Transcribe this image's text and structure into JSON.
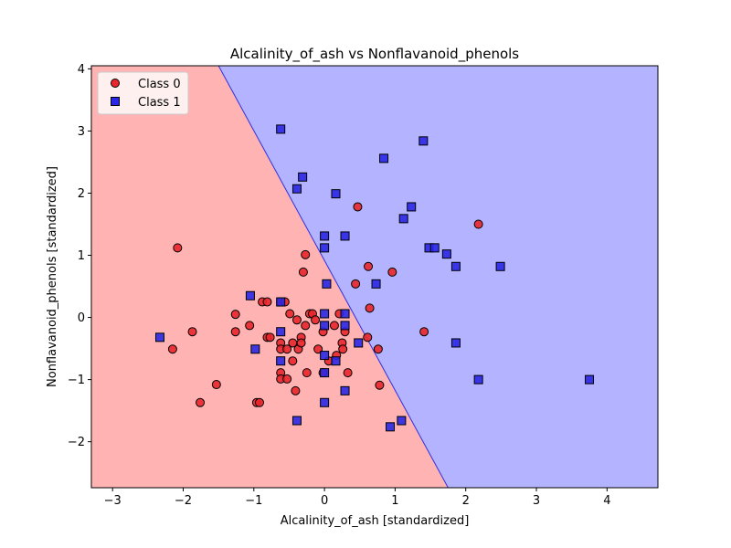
{
  "chart_data": {
    "type": "scatter",
    "title": "Alcalinity_of_ash vs Nonflavanoid_phenols",
    "xlabel": "Alcalinity_of_ash [standardized]",
    "ylabel": "Nonflavanoid_phenols [standardized]",
    "xlim": [
      -3.3,
      4.72
    ],
    "ylim": [
      -2.74,
      4.05
    ],
    "xticks": [
      -3,
      -2,
      -1,
      0,
      1,
      2,
      3,
      4
    ],
    "yticks": [
      -2,
      -1,
      0,
      1,
      2,
      3,
      4
    ],
    "xtick_labels": [
      "−3",
      "−2",
      "−1",
      "0",
      "1",
      "2",
      "3",
      "4"
    ],
    "ytick_labels": [
      "−2",
      "−1",
      "0",
      "1",
      "2",
      "3",
      "4"
    ],
    "grid": false,
    "legend": {
      "placement": "top-left"
    },
    "decision_boundary": {
      "points": [
        [
          -1.5,
          4.05
        ],
        [
          1.75,
          -2.74
        ]
      ],
      "region_colors": {
        "Class 0": "#ffb3b3",
        "Class 1": "#b3b3ff"
      }
    },
    "series": [
      {
        "name": "Class 0",
        "marker": "circle",
        "color": "#e8262b",
        "points": [
          [
            -2.08,
            1.12
          ],
          [
            -2.15,
            -0.51
          ],
          [
            -1.87,
            -0.23
          ],
          [
            -1.76,
            -1.37
          ],
          [
            -1.53,
            -1.08
          ],
          [
            -1.26,
            0.05
          ],
          [
            -1.26,
            -0.23
          ],
          [
            -1.06,
            -0.13
          ],
          [
            -0.96,
            -1.37
          ],
          [
            -0.92,
            -1.37
          ],
          [
            -0.88,
            0.25
          ],
          [
            -0.81,
            0.25
          ],
          [
            -0.81,
            -0.32
          ],
          [
            -0.77,
            -0.32
          ],
          [
            -0.62,
            0.25
          ],
          [
            -0.56,
            0.25
          ],
          [
            -0.62,
            -0.41
          ],
          [
            -0.62,
            -0.51
          ],
          [
            -0.62,
            -0.89
          ],
          [
            -0.62,
            -0.99
          ],
          [
            -0.53,
            -0.51
          ],
          [
            -0.53,
            -0.99
          ],
          [
            -0.49,
            0.06
          ],
          [
            -0.45,
            -0.41
          ],
          [
            -0.45,
            -0.7
          ],
          [
            -0.41,
            -1.18
          ],
          [
            -0.39,
            -0.04
          ],
          [
            -0.37,
            -0.51
          ],
          [
            -0.33,
            -0.32
          ],
          [
            -0.33,
            -0.41
          ],
          [
            -0.3,
            0.73
          ],
          [
            -0.27,
            1.01
          ],
          [
            -0.27,
            -0.13
          ],
          [
            -0.25,
            -0.89
          ],
          [
            -0.21,
            0.06
          ],
          [
            -0.17,
            0.06
          ],
          [
            -0.13,
            -0.04
          ],
          [
            -0.09,
            -0.51
          ],
          [
            -0.02,
            -0.23
          ],
          [
            -0.02,
            -0.89
          ],
          [
            0.06,
            -0.7
          ],
          [
            0.14,
            -0.13
          ],
          [
            0.17,
            -0.61
          ],
          [
            0.21,
            0.06
          ],
          [
            0.25,
            -0.41
          ],
          [
            0.26,
            -0.51
          ],
          [
            0.29,
            -0.23
          ],
          [
            0.33,
            -0.89
          ],
          [
            0.44,
            0.54
          ],
          [
            0.47,
            1.78
          ],
          [
            0.61,
            -0.32
          ],
          [
            0.62,
            0.82
          ],
          [
            0.64,
            0.15
          ],
          [
            0.76,
            -0.51
          ],
          [
            0.78,
            -1.09
          ],
          [
            0.96,
            0.73
          ],
          [
            1.41,
            -0.23
          ],
          [
            2.18,
            1.5
          ]
        ]
      },
      {
        "name": "Class 1",
        "marker": "square",
        "color": "#2a27e6",
        "points": [
          [
            -2.33,
            -0.32
          ],
          [
            -1.05,
            0.35
          ],
          [
            -0.98,
            -0.51
          ],
          [
            -0.62,
            3.03
          ],
          [
            -0.62,
            0.25
          ],
          [
            -0.62,
            -0.23
          ],
          [
            -0.62,
            -0.7
          ],
          [
            -0.39,
            2.07
          ],
          [
            -0.39,
            -1.66
          ],
          [
            -0.31,
            2.26
          ],
          [
            0.0,
            1.31
          ],
          [
            0.0,
            1.12
          ],
          [
            0.0,
            0.06
          ],
          [
            0.0,
            -0.13
          ],
          [
            0.0,
            -0.61
          ],
          [
            0.0,
            -0.89
          ],
          [
            0.0,
            -1.37
          ],
          [
            0.03,
            0.54
          ],
          [
            0.16,
            1.99
          ],
          [
            0.16,
            -0.7
          ],
          [
            0.29,
            1.31
          ],
          [
            0.29,
            0.06
          ],
          [
            0.29,
            -0.13
          ],
          [
            0.29,
            -1.18
          ],
          [
            0.73,
            0.54
          ],
          [
            0.48,
            -0.41
          ],
          [
            0.84,
            2.56
          ],
          [
            0.93,
            -1.76
          ],
          [
            1.09,
            -1.66
          ],
          [
            1.12,
            1.59
          ],
          [
            1.23,
            1.78
          ],
          [
            1.4,
            2.84
          ],
          [
            1.48,
            1.12
          ],
          [
            1.56,
            1.12
          ],
          [
            1.73,
            1.02
          ],
          [
            1.86,
            0.82
          ],
          [
            1.86,
            -0.41
          ],
          [
            2.18,
            -1.0
          ],
          [
            2.49,
            0.82
          ],
          [
            3.75,
            -1.0
          ]
        ]
      }
    ]
  }
}
